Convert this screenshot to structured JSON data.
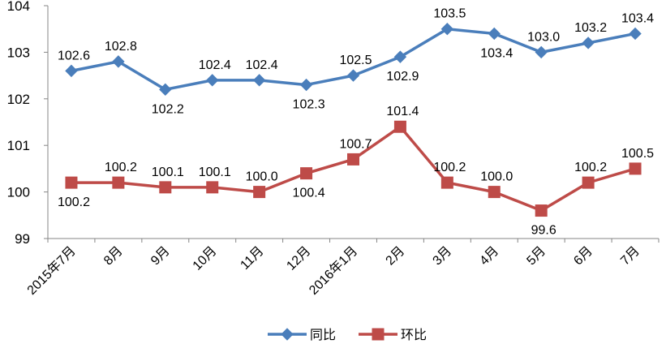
{
  "chart_data": {
    "type": "line",
    "title": "",
    "xlabel": "",
    "ylabel": "",
    "ylim": [
      99,
      104
    ],
    "yticks": [
      99,
      100,
      101,
      102,
      103,
      104
    ],
    "categories": [
      "2015年7月",
      "8月",
      "9月",
      "10月",
      "11月",
      "12月",
      "2016年1月",
      "2月",
      "3月",
      "4月",
      "5月",
      "6月",
      "7月"
    ],
    "series": [
      {
        "name": "同比",
        "color": "#4A7EBB",
        "marker": "diamond",
        "values": [
          102.6,
          102.8,
          102.2,
          102.4,
          102.4,
          102.3,
          102.5,
          102.9,
          103.5,
          103.4,
          103.0,
          103.2,
          103.4
        ],
        "labels": [
          "102.6",
          "102.8",
          "102.2",
          "102.4",
          "102.4",
          "102.3",
          "102.5",
          "102.9",
          "103.5",
          "103.4",
          "103.0",
          "103.2",
          "103.4"
        ]
      },
      {
        "name": "环比",
        "color": "#BE4B48",
        "marker": "square",
        "values": [
          100.2,
          100.2,
          100.1,
          100.1,
          100.0,
          100.4,
          100.7,
          101.4,
          100.2,
          100.0,
          99.6,
          100.2,
          100.5
        ],
        "labels": [
          "100.2",
          "100.2",
          "100.1",
          "100.1",
          "100.0",
          "100.4",
          "100.7",
          "101.4",
          "100.2",
          "100.0",
          "99.6",
          "100.2",
          "100.5"
        ]
      }
    ],
    "legend_position": "bottom",
    "grid": false
  }
}
